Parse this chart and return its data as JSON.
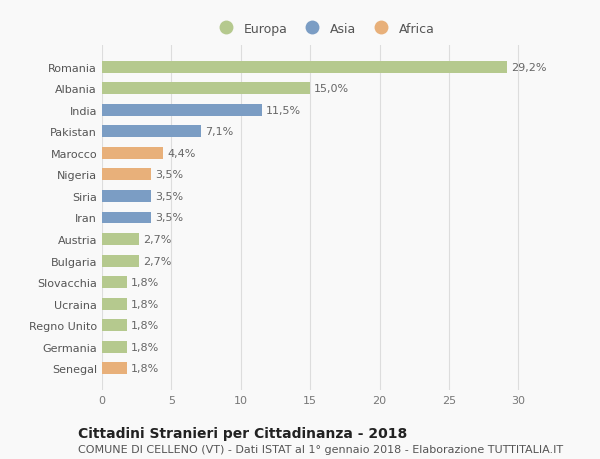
{
  "categories": [
    "Romania",
    "Albania",
    "India",
    "Pakistan",
    "Marocco",
    "Nigeria",
    "Siria",
    "Iran",
    "Austria",
    "Bulgaria",
    "Slovacchia",
    "Ucraina",
    "Regno Unito",
    "Germania",
    "Senegal"
  ],
  "values": [
    29.2,
    15.0,
    11.5,
    7.1,
    4.4,
    3.5,
    3.5,
    3.5,
    2.7,
    2.7,
    1.8,
    1.8,
    1.8,
    1.8,
    1.8
  ],
  "labels": [
    "29,2%",
    "15,0%",
    "11,5%",
    "7,1%",
    "4,4%",
    "3,5%",
    "3,5%",
    "3,5%",
    "2,7%",
    "2,7%",
    "1,8%",
    "1,8%",
    "1,8%",
    "1,8%",
    "1,8%"
  ],
  "continents": [
    "Europa",
    "Europa",
    "Asia",
    "Asia",
    "Africa",
    "Africa",
    "Asia",
    "Asia",
    "Europa",
    "Europa",
    "Europa",
    "Europa",
    "Europa",
    "Europa",
    "Africa"
  ],
  "colors": {
    "Europa": "#b5c98e",
    "Asia": "#7b9dc4",
    "Africa": "#e8b07a"
  },
  "legend_items": [
    "Europa",
    "Asia",
    "Africa"
  ],
  "xlim": [
    0,
    32
  ],
  "xticks": [
    0,
    5,
    10,
    15,
    20,
    25,
    30
  ],
  "title": "Cittadini Stranieri per Cittadinanza - 2018",
  "subtitle": "COMUNE DI CELLENO (VT) - Dati ISTAT al 1° gennaio 2018 - Elaborazione TUTTITALIA.IT",
  "background_color": "#f9f9f9",
  "grid_color": "#dddddd",
  "bar_height": 0.55,
  "title_fontsize": 10,
  "subtitle_fontsize": 8,
  "label_fontsize": 8,
  "tick_fontsize": 8,
  "legend_fontsize": 9
}
